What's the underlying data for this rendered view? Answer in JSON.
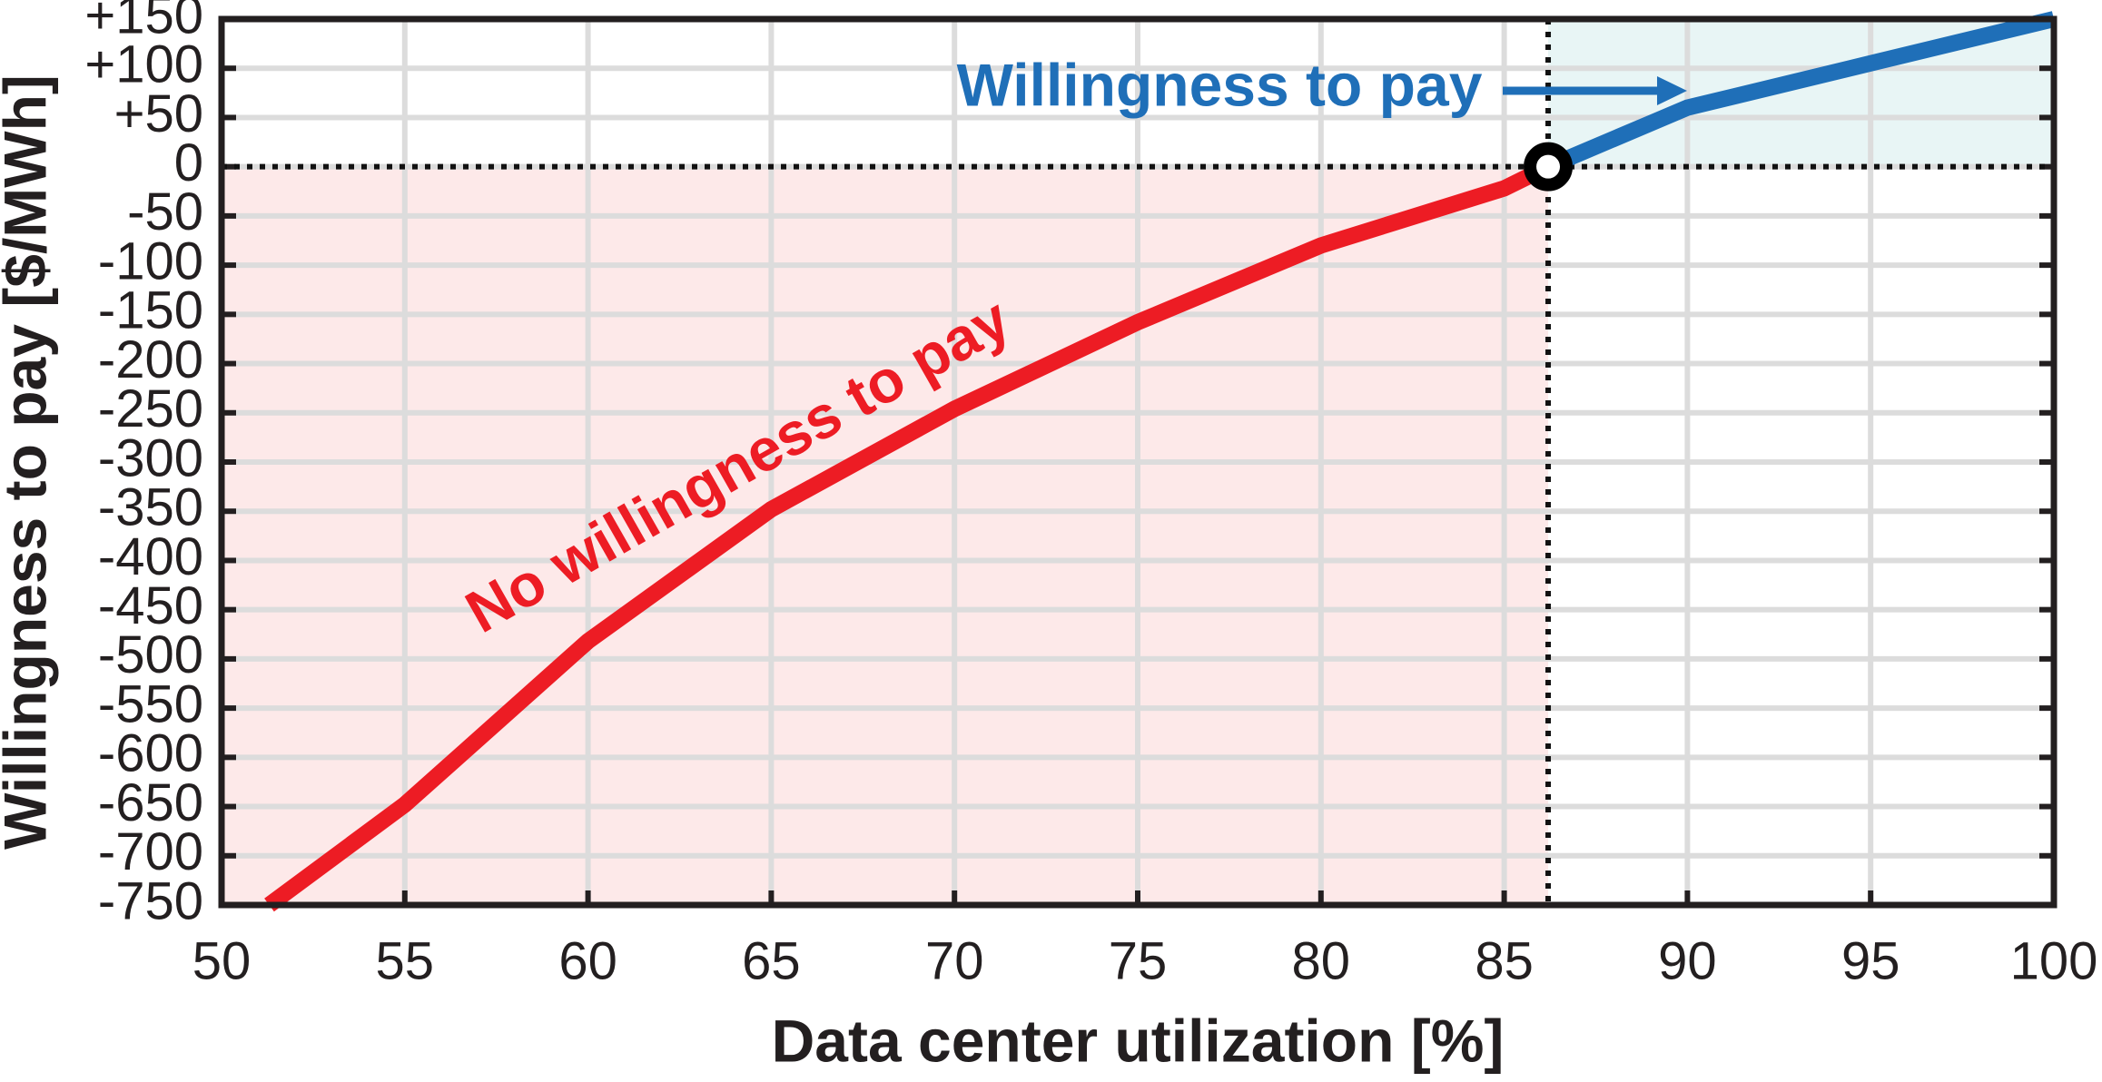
{
  "chart_data": {
    "type": "line",
    "xlabel": "Data center utilization [%]",
    "ylabel": "Willingness to pay [$/MWh]",
    "xlim": [
      50,
      100
    ],
    "xticks": [
      50,
      55,
      60,
      65,
      70,
      75,
      80,
      85,
      90,
      95,
      100
    ],
    "ylim": [
      -750,
      150
    ],
    "yticks": [
      {
        "value": 150,
        "label": "+150"
      },
      {
        "value": 100,
        "label": "+100"
      },
      {
        "value": 50,
        "label": "+50"
      },
      0,
      -50,
      -100,
      -150,
      -200,
      -250,
      -300,
      -350,
      -400,
      -450,
      -500,
      -550,
      -600,
      -650,
      -700,
      -750
    ],
    "grid": true,
    "series": [
      {
        "color": "#ed1c24",
        "x": [
          51.3,
          55,
          60,
          65,
          70,
          75,
          80,
          85,
          86.2
        ],
        "values": [
          -750,
          -648,
          -482,
          -348,
          -246,
          -158,
          -80,
          -22,
          0
        ]
      },
      {
        "color": "#1f6fb8",
        "x": [
          86.2,
          90,
          95,
          100
        ],
        "values": [
          0,
          60,
          105,
          150
        ]
      }
    ],
    "threshold": {
      "x": 86.2,
      "y": 0
    },
    "regions": [
      {
        "color": "#fde9e9"
      },
      {
        "color": "#e8f5f5"
      }
    ],
    "annotations": [
      {
        "text": "Willingness to pay",
        "color": "#1f6fb8"
      },
      {
        "text": "No willingness to pay",
        "color": "#ed1c24"
      }
    ]
  }
}
